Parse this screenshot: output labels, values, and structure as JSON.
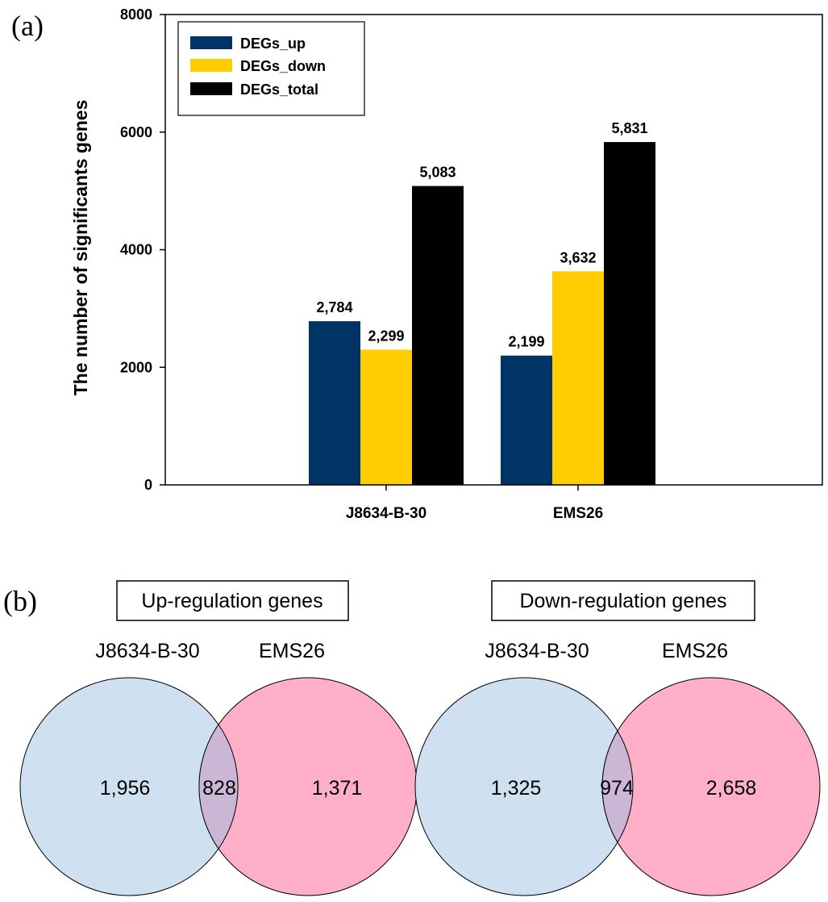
{
  "panels": {
    "a_label": "(a)",
    "b_label": "(b)"
  },
  "colors": {
    "DEGs_up": "#003366",
    "DEGs_down": "#ffcc00",
    "DEGs_total": "#000000",
    "venn_left": "#cfe0f0",
    "venn_right": "#ffb0c8",
    "venn_overlap": "#cbb6d6"
  },
  "chart_data": {
    "type": "bar",
    "title": "",
    "xlabel": "",
    "ylabel": "The number of significants genes",
    "ylim": [
      0,
      8000
    ],
    "yticks": [
      "0",
      "2000",
      "4000",
      "6000",
      "8000"
    ],
    "grid": false,
    "legend_position": "top-left",
    "categories": [
      "J8634-B-30",
      "EMS26"
    ],
    "series": [
      {
        "name": "DEGs_up",
        "values": [
          2784,
          2199
        ],
        "labels": [
          "2,784",
          "2,199"
        ]
      },
      {
        "name": "DEGs_down",
        "values": [
          2299,
          3632
        ],
        "labels": [
          "2,299",
          "3,632"
        ]
      },
      {
        "name": "DEGs_total",
        "values": [
          5083,
          5831
        ],
        "labels": [
          "5,083",
          "5,831"
        ]
      }
    ]
  },
  "venns": [
    {
      "title": "Up-regulation genes",
      "left_set": "J8634-B-30",
      "right_set": "EMS26",
      "left_only": "1,956",
      "overlap": "828",
      "right_only": "1,371"
    },
    {
      "title": "Down-regulation genes",
      "left_set": "J8634-B-30",
      "right_set": "EMS26",
      "left_only": "1,325",
      "overlap": "974",
      "right_only": "2,658"
    }
  ]
}
